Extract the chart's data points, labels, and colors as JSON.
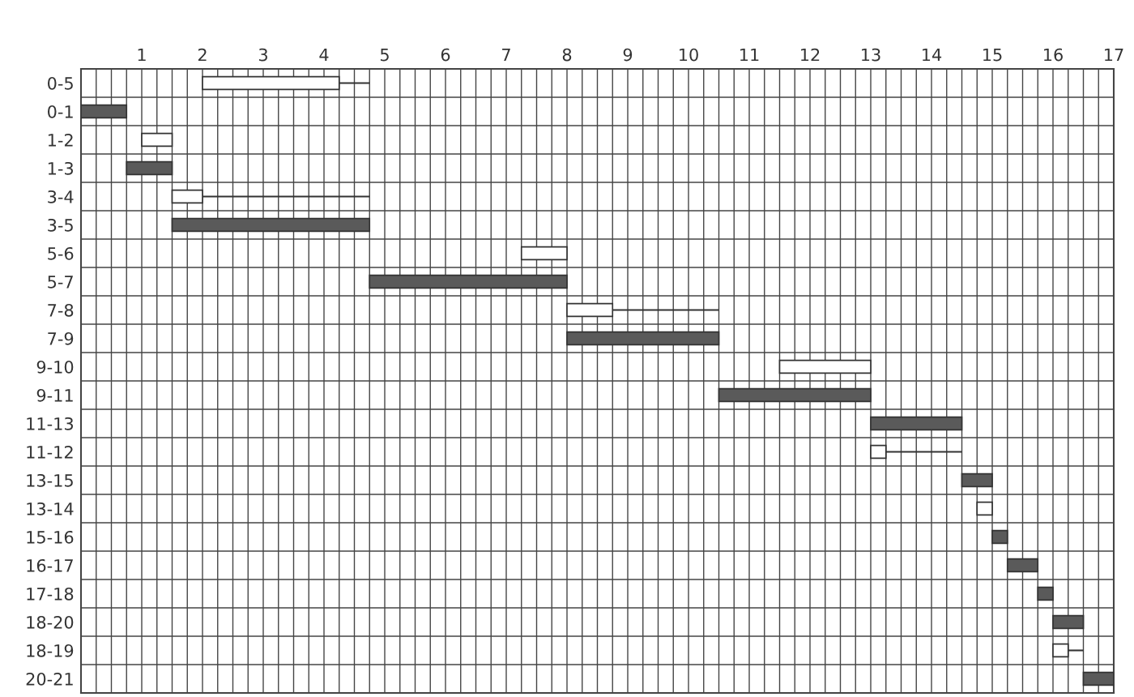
{
  "chart_data": {
    "type": "bar",
    "orientation": "horizontal",
    "categories": [
      "0-5",
      "0-1",
      "1-2",
      "1-3",
      "3-4",
      "3-5",
      "5-6",
      "5-7",
      "7-8",
      "7-9",
      "9-10",
      "9-11",
      "11-13",
      "11-12",
      "13-15",
      "13-14",
      "15-16",
      "16-17",
      "17-18",
      "18-20",
      "18-19",
      "20-21"
    ],
    "series": [
      {
        "color": "#5a5a5a",
        "base": [
          null,
          0,
          null,
          0.75,
          null,
          1.5,
          null,
          4.75,
          null,
          8.0,
          null,
          10.5,
          13.0,
          null,
          14.5,
          null,
          15.0,
          15.25,
          15.75,
          16.0,
          null,
          16.5
        ],
        "values": [
          null,
          0.75,
          null,
          0.75,
          null,
          3.25,
          null,
          3.25,
          null,
          2.5,
          null,
          2.5,
          1.5,
          null,
          0.5,
          null,
          0.25,
          0.5,
          0.25,
          0.5,
          null,
          0.5
        ]
      },
      {
        "color": "#ffffff",
        "base": [
          2.0,
          null,
          1.0,
          null,
          1.5,
          null,
          7.25,
          null,
          8.0,
          null,
          11.5,
          null,
          null,
          13.0,
          null,
          14.75,
          null,
          null,
          null,
          null,
          16.0,
          null
        ],
        "values": [
          2.25,
          null,
          0.5,
          null,
          0.5,
          null,
          0.75,
          null,
          0.75,
          null,
          1.5,
          null,
          null,
          0.25,
          null,
          0.25,
          null,
          null,
          null,
          null,
          0.25,
          null
        ]
      },
      {
        "color": "#333333",
        "base": [
          4.25,
          null,
          null,
          null,
          2.0,
          null,
          null,
          null,
          8.75,
          null,
          null,
          null,
          null,
          13.25,
          null,
          null,
          null,
          null,
          null,
          null,
          16.25,
          null
        ],
        "values": [
          0.5,
          null,
          null,
          null,
          2.75,
          null,
          null,
          null,
          1.75,
          null,
          null,
          null,
          null,
          1.25,
          null,
          null,
          null,
          null,
          null,
          null,
          0.25,
          null
        ]
      }
    ],
    "xlim": [
      0,
      17
    ],
    "xticks": [
      {
        "value": 0.25,
        "label": null
      },
      {
        "value": 0.5,
        "label": null
      },
      {
        "value": 0.75,
        "label": null
      },
      1,
      {
        "value": 1.25,
        "label": null
      },
      {
        "value": 1.5,
        "label": null
      },
      {
        "value": 1.75,
        "label": null
      },
      2,
      {
        "value": 2.25,
        "label": null
      },
      {
        "value": 2.5,
        "label": null
      },
      {
        "value": 2.75,
        "label": null
      },
      3,
      {
        "value": 3.25,
        "label": null
      },
      {
        "value": 3.5,
        "label": null
      },
      {
        "value": 3.75,
        "label": null
      },
      4,
      {
        "value": 4.25,
        "label": null
      },
      {
        "value": 4.5,
        "label": null
      },
      {
        "value": 4.75,
        "label": null
      },
      5,
      {
        "value": 5.25,
        "label": null
      },
      {
        "value": 5.5,
        "label": null
      },
      {
        "value": 5.75,
        "label": null
      },
      6,
      {
        "value": 6.25,
        "label": null
      },
      {
        "value": 6.5,
        "label": null
      },
      {
        "value": 6.75,
        "label": null
      },
      7,
      {
        "value": 7.25,
        "label": null
      },
      {
        "value": 7.5,
        "label": null
      },
      {
        "value": 7.75,
        "label": null
      },
      8,
      {
        "value": 8.25,
        "label": null
      },
      {
        "value": 8.5,
        "label": null
      },
      {
        "value": 8.75,
        "label": null
      },
      9,
      {
        "value": 9.25,
        "label": null
      },
      {
        "value": 9.5,
        "label": null
      },
      {
        "value": 9.75,
        "label": null
      },
      10,
      {
        "value": 10.25,
        "label": null
      },
      {
        "value": 10.5,
        "label": null
      },
      {
        "value": 10.75,
        "label": null
      },
      11,
      {
        "value": 11.25,
        "label": null
      },
      {
        "value": 11.5,
        "label": null
      },
      {
        "value": 11.75,
        "label": null
      },
      12,
      {
        "value": 12.25,
        "label": null
      },
      {
        "value": 12.5,
        "label": null
      },
      {
        "value": 12.75,
        "label": null
      },
      13,
      {
        "value": 13.25,
        "label": null
      },
      {
        "value": 13.5,
        "label": null
      },
      {
        "value": 13.75,
        "label": null
      },
      14,
      {
        "value": 14.25,
        "label": null
      },
      {
        "value": 14.5,
        "label": null
      },
      {
        "value": 14.75,
        "label": null
      },
      15,
      {
        "value": 15.25,
        "label": null
      },
      {
        "value": 15.5,
        "label": null
      },
      {
        "value": 15.75,
        "label": null
      },
      16,
      {
        "value": 16.25,
        "label": null
      },
      {
        "value": 16.5,
        "label": null
      },
      {
        "value": 16.75,
        "label": null
      },
      17
    ],
    "grid": true
  }
}
